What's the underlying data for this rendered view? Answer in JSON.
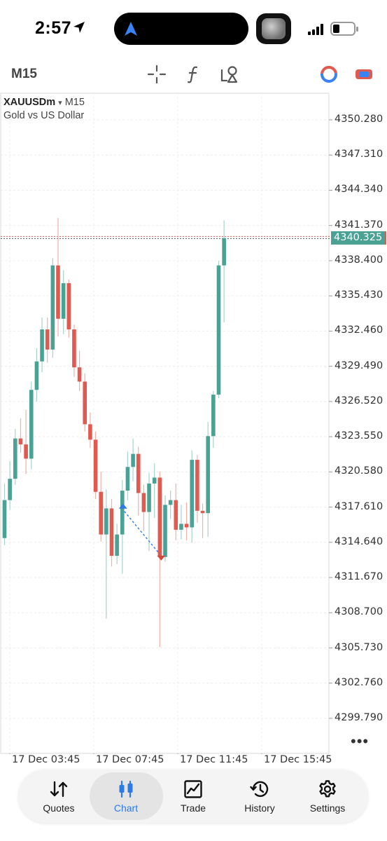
{
  "status_bar": {
    "time": "2:57"
  },
  "toolbar": {
    "timeframe": "M15",
    "icons": [
      "crosshair-icon",
      "indicators-icon",
      "objects-icon",
      "trade-signals-icon",
      "one-click-trading-icon"
    ]
  },
  "chart": {
    "symbol": "XAUUSDm",
    "symbol_arrow": "▾",
    "timeframe": "M15",
    "description": "Gold vs US Dollar",
    "current_price": "4340.325",
    "y_ticks": [
      "4350.280",
      "4347.310",
      "4344.340",
      "4341.370",
      "4338.400",
      "4335.430",
      "4332.460",
      "4329.490",
      "4326.520",
      "4323.550",
      "4320.580",
      "4317.610",
      "4314.640",
      "4311.670",
      "4308.700",
      "4305.730",
      "4302.760",
      "4299.790"
    ],
    "x_ticks": [
      "17 Dec 03:45",
      "17 Dec 07:45",
      "17 Dec 11:45",
      "17 Dec 15:45"
    ],
    "more_label": "•••",
    "colors": {
      "bull": "#4ba294",
      "bear": "#e05a4f",
      "grid": "#ececec"
    }
  },
  "chart_data": {
    "type": "candlestick",
    "title": "",
    "symbol": "XAUUSDm",
    "interval": "M15",
    "x_labels": [
      "17 Dec 03:45",
      "17 Dec 07:45",
      "17 Dec 11:45",
      "17 Dec 15:45"
    ],
    "ylim": [
      4298.5,
      4352.0
    ],
    "grid": true,
    "current_price": 4340.325,
    "candles": [
      {
        "o": 4315.0,
        "h": 4319.6,
        "l": 4314.4,
        "c": 4318.2
      },
      {
        "o": 4318.2,
        "h": 4321.5,
        "l": 4317.4,
        "c": 4320.0
      },
      {
        "o": 4320.0,
        "h": 4324.2,
        "l": 4319.5,
        "c": 4323.4
      },
      {
        "o": 4323.4,
        "h": 4325.1,
        "l": 4322.2,
        "c": 4322.9
      },
      {
        "o": 4322.9,
        "h": 4325.8,
        "l": 4320.4,
        "c": 4321.7
      },
      {
        "o": 4321.7,
        "h": 4328.2,
        "l": 4320.8,
        "c": 4327.5
      },
      {
        "o": 4327.5,
        "h": 4331.0,
        "l": 4326.5,
        "c": 4329.9
      },
      {
        "o": 4329.9,
        "h": 4333.6,
        "l": 4329.0,
        "c": 4332.6
      },
      {
        "o": 4332.6,
        "h": 4333.6,
        "l": 4329.8,
        "c": 4330.9
      },
      {
        "o": 4330.9,
        "h": 4338.6,
        "l": 4330.2,
        "c": 4338.0
      },
      {
        "o": 4338.0,
        "h": 4342.0,
        "l": 4332.0,
        "c": 4333.5
      },
      {
        "o": 4333.5,
        "h": 4337.6,
        "l": 4332.2,
        "c": 4336.5
      },
      {
        "o": 4336.5,
        "h": 4336.8,
        "l": 4331.9,
        "c": 4332.6
      },
      {
        "o": 4332.6,
        "h": 4333.0,
        "l": 4328.6,
        "c": 4329.4
      },
      {
        "o": 4329.4,
        "h": 4330.8,
        "l": 4327.4,
        "c": 4328.2
      },
      {
        "o": 4328.2,
        "h": 4328.9,
        "l": 4324.0,
        "c": 4324.6
      },
      {
        "o": 4324.6,
        "h": 4325.6,
        "l": 4322.6,
        "c": 4323.3
      },
      {
        "o": 4323.3,
        "h": 4324.0,
        "l": 4318.3,
        "c": 4318.9
      },
      {
        "o": 4318.9,
        "h": 4320.6,
        "l": 4314.7,
        "c": 4315.3
      },
      {
        "o": 4315.3,
        "h": 4319.1,
        "l": 4308.2,
        "c": 4317.5
      },
      {
        "o": 4317.5,
        "h": 4318.3,
        "l": 4312.6,
        "c": 4313.5
      },
      {
        "o": 4313.5,
        "h": 4316.2,
        "l": 4312.8,
        "c": 4315.3
      },
      {
        "o": 4315.3,
        "h": 4319.9,
        "l": 4312.0,
        "c": 4319.0
      },
      {
        "o": 4319.0,
        "h": 4322.3,
        "l": 4318.2,
        "c": 4321.0
      },
      {
        "o": 4321.0,
        "h": 4323.4,
        "l": 4319.8,
        "c": 4322.1
      },
      {
        "o": 4322.1,
        "h": 4322.7,
        "l": 4316.9,
        "c": 4318.8
      },
      {
        "o": 4318.8,
        "h": 4319.5,
        "l": 4315.6,
        "c": 4317.2
      },
      {
        "o": 4317.2,
        "h": 4320.5,
        "l": 4313.9,
        "c": 4319.6
      },
      {
        "o": 4319.6,
        "h": 4321.3,
        "l": 4316.7,
        "c": 4320.1
      },
      {
        "o": 4320.1,
        "h": 4320.6,
        "l": 4305.8,
        "c": 4313.4
      },
      {
        "o": 4313.4,
        "h": 4318.6,
        "l": 4313.0,
        "c": 4317.8
      },
      {
        "o": 4317.8,
        "h": 4319.0,
        "l": 4316.6,
        "c": 4318.2
      },
      {
        "o": 4318.2,
        "h": 4319.6,
        "l": 4314.8,
        "c": 4315.7
      },
      {
        "o": 4315.7,
        "h": 4317.8,
        "l": 4314.9,
        "c": 4316.2
      },
      {
        "o": 4316.2,
        "h": 4318.0,
        "l": 4314.8,
        "c": 4315.9
      },
      {
        "o": 4315.9,
        "h": 4322.4,
        "l": 4314.6,
        "c": 4321.6
      },
      {
        "o": 4321.6,
        "h": 4322.0,
        "l": 4316.3,
        "c": 4317.3
      },
      {
        "o": 4317.3,
        "h": 4317.9,
        "l": 4315.0,
        "c": 4317.1
      },
      {
        "o": 4317.1,
        "h": 4324.8,
        "l": 4315.1,
        "c": 4323.6
      },
      {
        "o": 4323.6,
        "h": 4327.4,
        "l": 4322.6,
        "c": 4327.1
      },
      {
        "o": 4327.1,
        "h": 4338.4,
        "l": 4326.8,
        "c": 4338.0
      },
      {
        "o": 4338.0,
        "h": 4341.8,
        "l": 4333.2,
        "c": 4340.3
      }
    ],
    "trades": [
      {
        "type": "buy",
        "candle_index": 22,
        "price": 4317.6
      },
      {
        "type": "sell",
        "candle_index": 29,
        "price": 4313.4
      }
    ]
  },
  "bottom_nav": {
    "items": [
      {
        "label": "Quotes",
        "icon": "quotes-icon",
        "active": false
      },
      {
        "label": "Chart",
        "icon": "chart-icon",
        "active": true
      },
      {
        "label": "Trade",
        "icon": "trade-icon",
        "active": false
      },
      {
        "label": "History",
        "icon": "history-icon",
        "active": false
      },
      {
        "label": "Settings",
        "icon": "settings-icon",
        "active": false
      }
    ],
    "active_color": "#2d7be5"
  }
}
